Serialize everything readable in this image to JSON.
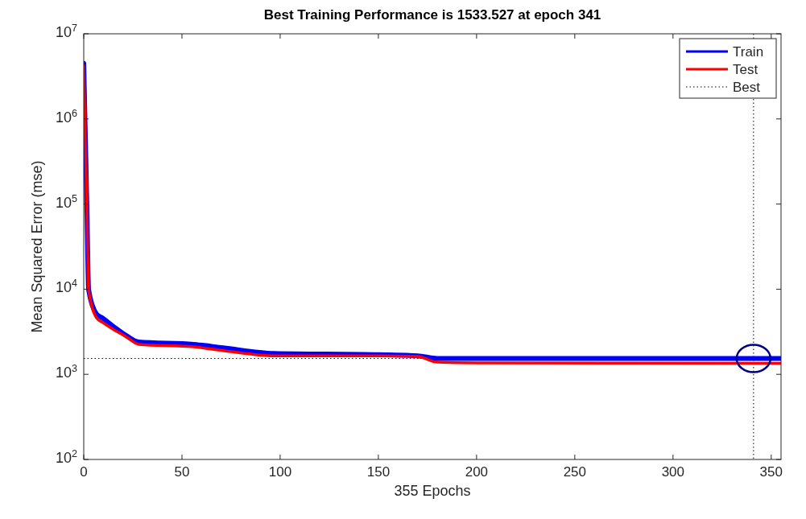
{
  "chart_data": {
    "type": "line",
    "title": "Best Training Performance is 1533.527 at epoch 341",
    "xlabel": "355 Epochs",
    "ylabel": "Mean Squared Error  (mse)",
    "log": "y",
    "xlim": [
      0,
      355
    ],
    "xticks": [
      0,
      50,
      100,
      150,
      200,
      250,
      300,
      350
    ],
    "ylim": [
      100,
      10000000
    ],
    "yticks": [
      {
        "value": 100,
        "label": "10$^{2}$"
      },
      {
        "value": 1000,
        "label": "10$^{3}$"
      },
      {
        "value": 10000,
        "label": "10$^{4}$"
      },
      {
        "value": 100000,
        "label": "10$^{5}$"
      },
      {
        "value": 1000000,
        "label": "10$^{6}$"
      },
      {
        "value": 10000000,
        "label": "10$^{7}$"
      }
    ],
    "grid": false,
    "legend": "top right",
    "marker": "none",
    "line_style": "solid",
    "series": [
      {
        "name": "Train",
        "color": "#0000ff",
        "x": [
          0,
          1.6,
          2.5,
          6.5,
          9.4,
          14.8,
          21.7,
          28,
          56,
          71,
          97,
          150,
          170,
          180,
          200,
          355
        ],
        "values": [
          4500000,
          93000,
          9800,
          5100,
          4600,
          3700,
          2850,
          2400,
          2250,
          2050,
          1760,
          1700,
          1650,
          1535,
          1535,
          1533.527
        ]
      },
      {
        "name": "Test",
        "color": "#ff0000",
        "x": [
          0,
          1.6,
          2.5,
          6.5,
          9.4,
          14.8,
          21.7,
          28,
          56,
          71,
          97,
          150,
          170,
          180,
          200,
          355
        ],
        "values": [
          4200000,
          93000,
          9800,
          4600,
          4100,
          3400,
          2750,
          2250,
          2100,
          1900,
          1650,
          1650,
          1620,
          1390,
          1360,
          1350
        ]
      },
      {
        "type": "scatter",
        "marker": "circle",
        "color": "#00008b",
        "x": [
          341
        ],
        "values": [
          1533.527
        ]
      }
    ],
    "ref_lines": [
      {
        "axis": "x",
        "value": 341,
        "label": "Best",
        "line_style": "dotted",
        "color": "#000000"
      },
      {
        "axis": "y",
        "value": 1533.527,
        "line_style": "dotted",
        "color": "#000000"
      }
    ]
  }
}
